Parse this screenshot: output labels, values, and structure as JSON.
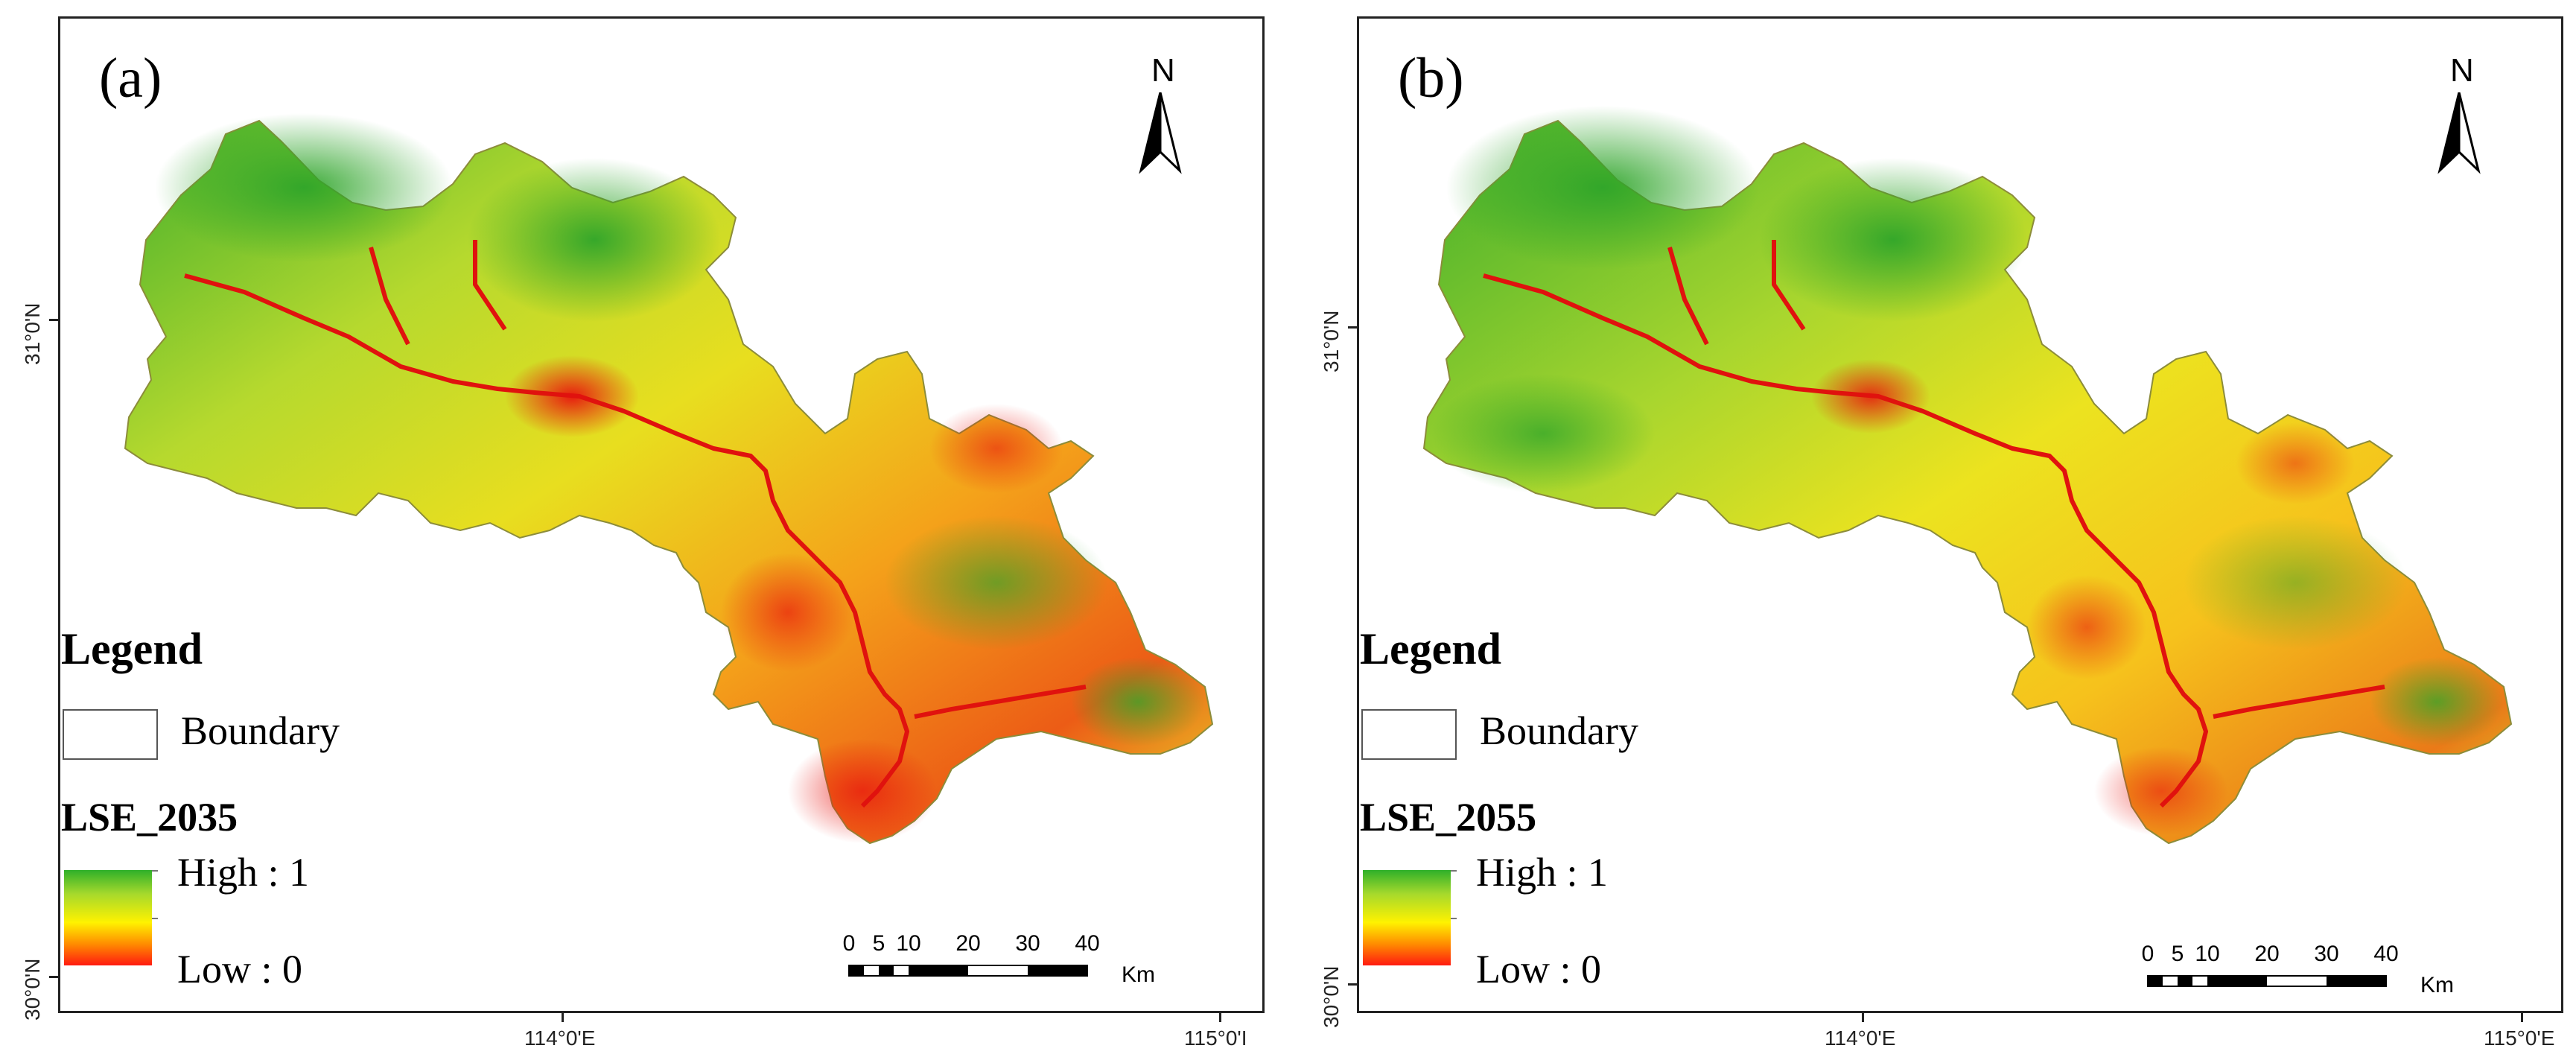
{
  "panels": [
    {
      "id": "a",
      "label": "(a)",
      "north": "N",
      "legend_title": "Legend",
      "boundary_label": "Boundary",
      "layer_title": "LSE_2035",
      "ramp_high": "High : 1",
      "ramp_low": "Low : 0",
      "lat_top": "31°0'N",
      "lat_bottom": "30°0'N",
      "lon_left": "114°0'E",
      "lon_right": "115°0'I",
      "scale_ticks": [
        "0",
        "5",
        "10",
        "20",
        "30",
        "40"
      ],
      "scale_units": "Km"
    },
    {
      "id": "b",
      "label": "(b)",
      "north": "N",
      "legend_title": "Legend",
      "boundary_label": "Boundary",
      "layer_title": "LSE_2055",
      "ramp_high": "High : 1",
      "ramp_low": "Low : 0",
      "lat_top": "31°0'N",
      "lat_bottom": "30°0'N",
      "lon_left": "114°0'E",
      "lon_right": "115°0'E",
      "scale_ticks": [
        "0",
        "5",
        "10",
        "20",
        "30",
        "40"
      ],
      "scale_units": "Km"
    }
  ],
  "colors": {
    "high": "#2fb02a",
    "mid": "#fff200",
    "low": "#ff1a10"
  }
}
